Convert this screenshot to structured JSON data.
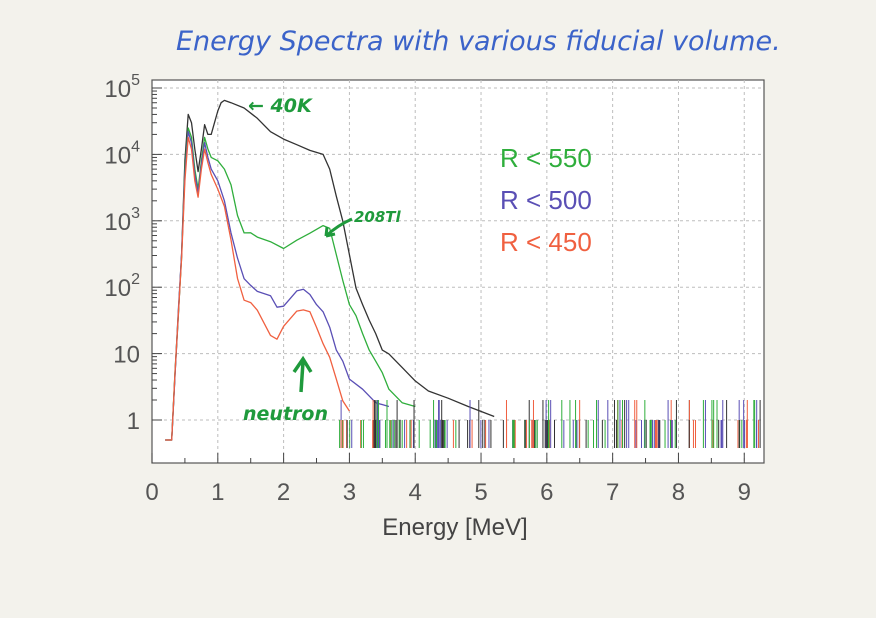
{
  "annotations": {
    "title": "Energy Spectra with various fiducial volume.",
    "k40": "← 40K",
    "tl208": "208Tl",
    "neutron": "neutron"
  },
  "chart_data": {
    "type": "line",
    "title": "Energy Spectra with various fiducial volume.",
    "xlabel": "Energy [MeV]",
    "ylabel": "",
    "xlim": [
      0,
      9.3
    ],
    "ylim": [
      0.5,
      100000
    ],
    "yscale": "log",
    "grid": true,
    "legend_position": "right",
    "x_ticks": [
      "0",
      "1",
      "2",
      "3",
      "4",
      "5",
      "6",
      "7",
      "8",
      "9"
    ],
    "y_ticks": [
      {
        "mantissa": "1",
        "exp": ""
      },
      {
        "mantissa": "10",
        "exp": ""
      },
      {
        "mantissa": "10",
        "exp": "2"
      },
      {
        "mantissa": "10",
        "exp": "3"
      },
      {
        "mantissa": "10",
        "exp": "4"
      },
      {
        "mantissa": "10",
        "exp": "5"
      }
    ],
    "series": [
      {
        "name": "",
        "color": "#333333",
        "points": [
          [
            0.2,
            0
          ],
          [
            0.3,
            0
          ],
          [
            0.35,
            5
          ],
          [
            0.4,
            40
          ],
          [
            0.45,
            300
          ],
          [
            0.5,
            8000
          ],
          [
            0.55,
            40000
          ],
          [
            0.6,
            30000
          ],
          [
            0.65,
            12000
          ],
          [
            0.7,
            5500
          ],
          [
            0.75,
            12000
          ],
          [
            0.8,
            28000
          ],
          [
            0.85,
            20000
          ],
          [
            0.9,
            20000
          ],
          [
            0.95,
            30000
          ],
          [
            1.0,
            45000
          ],
          [
            1.05,
            60000
          ],
          [
            1.1,
            65000
          ],
          [
            1.2,
            60000
          ],
          [
            1.4,
            50000
          ],
          [
            1.6,
            35000
          ],
          [
            1.8,
            22000
          ],
          [
            2.0,
            17000
          ],
          [
            2.2,
            14000
          ],
          [
            2.4,
            11500
          ],
          [
            2.6,
            10000
          ],
          [
            2.7,
            6000
          ],
          [
            2.8,
            2500
          ],
          [
            2.9,
            900
          ],
          [
            3.0,
            300
          ],
          [
            3.1,
            100
          ],
          [
            3.2,
            60
          ],
          [
            3.3,
            30
          ],
          [
            3.4,
            20
          ],
          [
            3.5,
            12
          ],
          [
            3.6,
            9
          ],
          [
            3.8,
            6
          ],
          [
            4.0,
            4
          ],
          [
            4.2,
            3
          ],
          [
            4.5,
            2
          ],
          [
            4.8,
            1.6
          ],
          [
            5.2,
            1.2
          ]
        ]
      },
      {
        "name": "R < 550",
        "color": "#2fae3c",
        "points": [
          [
            0.2,
            0
          ],
          [
            0.3,
            0
          ],
          [
            0.35,
            5
          ],
          [
            0.4,
            40
          ],
          [
            0.45,
            300
          ],
          [
            0.5,
            6000
          ],
          [
            0.55,
            25000
          ],
          [
            0.6,
            18000
          ],
          [
            0.65,
            6000
          ],
          [
            0.7,
            3000
          ],
          [
            0.75,
            8000
          ],
          [
            0.8,
            18000
          ],
          [
            0.85,
            12000
          ],
          [
            0.9,
            9000
          ],
          [
            1.0,
            8000
          ],
          [
            1.1,
            6000
          ],
          [
            1.2,
            3500
          ],
          [
            1.3,
            1200
          ],
          [
            1.4,
            700
          ],
          [
            1.5,
            600
          ],
          [
            1.6,
            550
          ],
          [
            1.8,
            500
          ],
          [
            2.0,
            420
          ],
          [
            2.2,
            480
          ],
          [
            2.4,
            650
          ],
          [
            2.6,
            900
          ],
          [
            2.7,
            700
          ],
          [
            2.8,
            300
          ],
          [
            2.9,
            130
          ],
          [
            3.0,
            60
          ],
          [
            3.1,
            35
          ],
          [
            3.2,
            20
          ],
          [
            3.3,
            12
          ],
          [
            3.4,
            7
          ],
          [
            3.5,
            5
          ],
          [
            3.6,
            3
          ],
          [
            3.8,
            2
          ],
          [
            4.0,
            1.5
          ]
        ]
      },
      {
        "name": "R < 500",
        "color": "#5a4fb5",
        "points": [
          [
            0.2,
            0
          ],
          [
            0.3,
            0
          ],
          [
            0.35,
            5
          ],
          [
            0.4,
            40
          ],
          [
            0.45,
            300
          ],
          [
            0.5,
            5000
          ],
          [
            0.55,
            22000
          ],
          [
            0.6,
            15000
          ],
          [
            0.65,
            5000
          ],
          [
            0.7,
            2800
          ],
          [
            0.75,
            7000
          ],
          [
            0.8,
            15000
          ],
          [
            0.85,
            9000
          ],
          [
            0.9,
            6000
          ],
          [
            1.0,
            4000
          ],
          [
            1.1,
            2000
          ],
          [
            1.2,
            700
          ],
          [
            1.3,
            250
          ],
          [
            1.4,
            130
          ],
          [
            1.5,
            110
          ],
          [
            1.6,
            95
          ],
          [
            1.8,
            70
          ],
          [
            1.9,
            50
          ],
          [
            2.0,
            55
          ],
          [
            2.2,
            80
          ],
          [
            2.3,
            90
          ],
          [
            2.4,
            80
          ],
          [
            2.5,
            60
          ],
          [
            2.6,
            40
          ],
          [
            2.7,
            25
          ],
          [
            2.8,
            12
          ],
          [
            2.9,
            7
          ],
          [
            3.0,
            4
          ],
          [
            3.2,
            3
          ],
          [
            3.4,
            2
          ],
          [
            3.6,
            1.5
          ]
        ]
      },
      {
        "name": "R < 450",
        "color": "#f06040",
        "points": [
          [
            0.2,
            0
          ],
          [
            0.3,
            0
          ],
          [
            0.35,
            5
          ],
          [
            0.4,
            40
          ],
          [
            0.45,
            300
          ],
          [
            0.5,
            4000
          ],
          [
            0.55,
            18000
          ],
          [
            0.6,
            12000
          ],
          [
            0.65,
            4000
          ],
          [
            0.7,
            2200
          ],
          [
            0.75,
            6000
          ],
          [
            0.8,
            12000
          ],
          [
            0.85,
            7500
          ],
          [
            0.9,
            5000
          ],
          [
            1.0,
            3000
          ],
          [
            1.1,
            1500
          ],
          [
            1.2,
            500
          ],
          [
            1.3,
            140
          ],
          [
            1.4,
            70
          ],
          [
            1.5,
            55
          ],
          [
            1.6,
            45
          ],
          [
            1.8,
            20
          ],
          [
            1.9,
            15
          ],
          [
            2.0,
            25
          ],
          [
            2.2,
            45
          ],
          [
            2.3,
            50
          ],
          [
            2.4,
            40
          ],
          [
            2.5,
            25
          ],
          [
            2.6,
            15
          ],
          [
            2.7,
            8
          ],
          [
            2.8,
            4
          ],
          [
            2.9,
            2
          ],
          [
            3.0,
            1.5
          ]
        ]
      }
    ]
  }
}
